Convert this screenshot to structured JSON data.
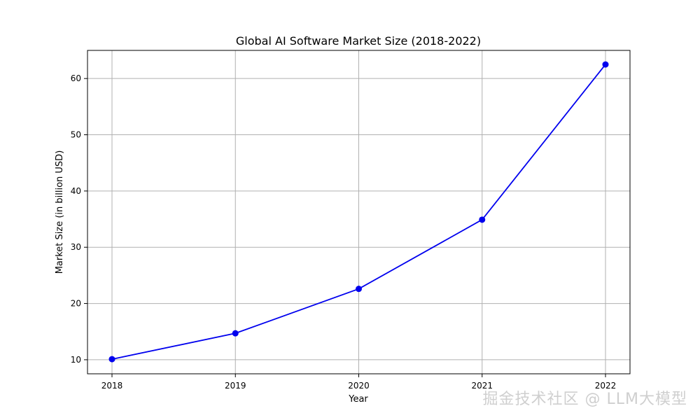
{
  "chart_data": {
    "type": "line",
    "title": "Global AI Software Market Size (2018-2022)",
    "xlabel": "Year",
    "ylabel": "Market Size (in billion USD)",
    "x": [
      "2018",
      "2019",
      "2020",
      "2021",
      "2022"
    ],
    "series": [
      {
        "values": [
          10.1,
          14.7,
          22.6,
          34.9,
          62.5
        ],
        "color": "#0000ee",
        "marker": "circle"
      }
    ],
    "yticks": [
      10,
      20,
      30,
      40,
      50,
      60
    ],
    "ylim": [
      7.5,
      65.0
    ],
    "grid": true
  },
  "watermark": "掘金技术社区 @ LLM大模型"
}
